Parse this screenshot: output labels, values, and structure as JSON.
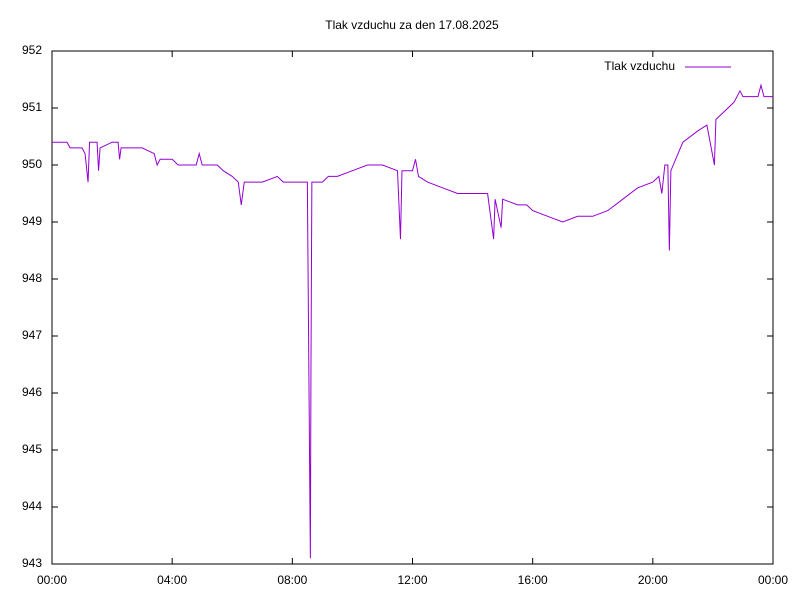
{
  "chart_data": {
    "type": "line",
    "title": "Tlak vzduchu za den 17.08.2025",
    "series": [
      {
        "name": "Tlak vzduchu",
        "color": "#9400d3",
        "x": [
          0.0,
          0.5,
          0.6,
          1.0,
          1.1,
          1.2,
          1.25,
          1.5,
          1.55,
          1.6,
          2.0,
          2.2,
          2.25,
          2.3,
          3.0,
          3.4,
          3.5,
          3.6,
          4.0,
          4.2,
          4.8,
          4.9,
          5.0,
          5.5,
          5.7,
          6.0,
          6.2,
          6.3,
          6.4,
          7.0,
          7.5,
          7.7,
          8.0,
          8.5,
          8.6,
          8.62,
          8.65,
          9.0,
          9.2,
          9.5,
          10.0,
          10.5,
          11.0,
          11.5,
          11.55,
          11.6,
          11.65,
          12.0,
          12.1,
          12.2,
          12.5,
          13.0,
          13.5,
          14.0,
          14.5,
          14.7,
          14.75,
          14.95,
          15.0,
          15.5,
          15.8,
          16.0,
          16.5,
          17.0,
          17.5,
          18.0,
          18.5,
          19.0,
          19.5,
          20.0,
          20.2,
          20.3,
          20.4,
          20.5,
          20.55,
          20.6,
          21.0,
          21.5,
          21.8,
          22.05,
          22.1,
          22.3,
          22.7,
          22.9,
          23.0,
          23.5,
          23.6,
          23.7,
          24.0
        ],
        "values": [
          950.4,
          950.4,
          950.3,
          950.3,
          950.2,
          949.7,
          950.4,
          950.4,
          949.9,
          950.3,
          950.4,
          950.4,
          950.1,
          950.3,
          950.3,
          950.2,
          950.0,
          950.1,
          950.1,
          950.0,
          950.0,
          950.2,
          950.0,
          950.0,
          949.9,
          949.8,
          949.7,
          949.3,
          949.7,
          949.7,
          949.8,
          949.7,
          949.7,
          949.7,
          943.1,
          946.4,
          949.7,
          949.7,
          949.8,
          949.8,
          949.9,
          950.0,
          950.0,
          949.9,
          949.3,
          948.7,
          949.9,
          949.9,
          950.1,
          949.8,
          949.7,
          949.6,
          949.5,
          949.5,
          949.5,
          948.7,
          949.4,
          948.9,
          949.4,
          949.3,
          949.3,
          949.2,
          949.1,
          949.0,
          949.1,
          949.1,
          949.2,
          949.4,
          949.6,
          949.7,
          949.8,
          949.5,
          950.0,
          950.0,
          948.5,
          949.9,
          950.4,
          950.6,
          950.7,
          950.0,
          950.8,
          950.9,
          951.1,
          951.3,
          951.2,
          951.2,
          951.4,
          951.2,
          951.2
        ]
      }
    ],
    "xlim": [
      0,
      24
    ],
    "xticks": [
      {
        "value": 0,
        "label": "00:00"
      },
      {
        "value": 4,
        "label": "04:00"
      },
      {
        "value": 8,
        "label": "08:00"
      },
      {
        "value": 12,
        "label": "12:00"
      },
      {
        "value": 16,
        "label": "16:00"
      },
      {
        "value": 20,
        "label": "20:00"
      },
      {
        "value": 24,
        "label": "00:00"
      }
    ],
    "ylim": [
      943,
      952
    ],
    "yticks": [
      943,
      944,
      945,
      946,
      947,
      948,
      949,
      950,
      951,
      952
    ],
    "grid": false,
    "legend": "top-right"
  }
}
